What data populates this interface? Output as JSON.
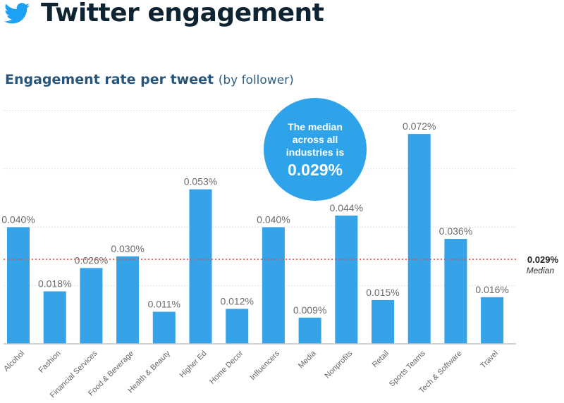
{
  "header": {
    "title": "Twitter engagement",
    "icon": "twitter-bird-icon",
    "brand_color": "#1da1f2",
    "title_color": "#0f2433"
  },
  "chart_data": {
    "type": "bar",
    "title": "Engagement rate per tweet",
    "subtitle": "(by follower)",
    "xlabel": "",
    "ylabel": "",
    "categories": [
      "Alcohol",
      "Fashion",
      "Financial Services",
      "Food & Beverage",
      "Health & Beauty",
      "Higher Ed",
      "Home Decor",
      "Influencers",
      "Media",
      "Nonprofits",
      "Retail",
      "Sports Teams",
      "Tech & Software",
      "Travel"
    ],
    "values": [
      0.04,
      0.018,
      0.026,
      0.03,
      0.011,
      0.053,
      0.012,
      0.04,
      0.009,
      0.044,
      0.015,
      0.072,
      0.036,
      0.016
    ],
    "value_labels": [
      "0.040%",
      "0.018%",
      "0.026%",
      "0.030%",
      "0.011%",
      "0.053%",
      "0.012%",
      "0.040%",
      "0.009%",
      "0.044%",
      "0.015%",
      "0.072%",
      "0.036%",
      "0.016%"
    ],
    "units": "%",
    "ylim": [
      0,
      0.08
    ],
    "grid": true,
    "bar_color": "#36a2e8",
    "median": {
      "value": 0.029,
      "label": "0.029%",
      "caption": "Median",
      "color": "#d9534f"
    },
    "callout": {
      "lines": [
        "The median",
        "across all",
        "industries is"
      ],
      "value": "0.029%",
      "color": "#2ea3ea"
    }
  }
}
